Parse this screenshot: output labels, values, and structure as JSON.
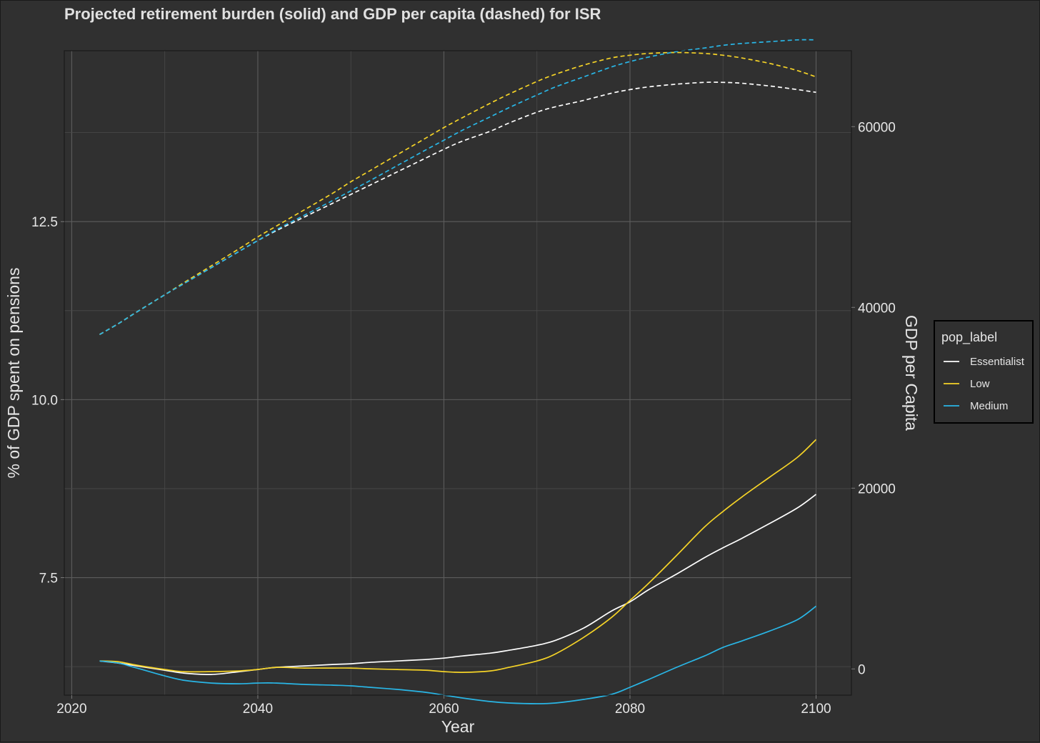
{
  "chart_data": {
    "type": "line",
    "title": "Projected retirement burden (solid) and GDP per capita (dashed) for ISR",
    "xlabel": "Year",
    "ylabel": "% of GDP spent on pensions",
    "y2label": "GDP per Capita",
    "xlim": [
      2019.2,
      2103.8
    ],
    "ylim": [
      5.85,
      14.9
    ],
    "y2lim": [
      -2900,
      68400
    ],
    "x_ticks": [
      "2020",
      "2040",
      "2060",
      "2080",
      "2100"
    ],
    "y_ticks": [
      "7.5",
      "10.0",
      "12.5"
    ],
    "y2_ticks": [
      "0",
      "20000",
      "40000",
      "60000"
    ],
    "legend": {
      "title": "pop_label",
      "position": "right",
      "entries": [
        {
          "label": "Essentialist",
          "color": "#ffffff"
        },
        {
          "label": "Low",
          "color": "#f5d327"
        },
        {
          "label": "Medium",
          "color": "#29b6e6"
        }
      ]
    },
    "x": [
      2023,
      2025,
      2027,
      2030,
      2032,
      2035,
      2038,
      2040,
      2042,
      2045,
      2048,
      2050,
      2052,
      2055,
      2058,
      2060,
      2062,
      2065,
      2067,
      2070,
      2072,
      2075,
      2078,
      2080,
      2082,
      2085,
      2088,
      2090,
      2092,
      2095,
      2098,
      2100
    ],
    "series": [
      {
        "name": "Essentialist",
        "axis": "pension",
        "color": "#ffffff",
        "values": [
          6.33,
          6.3,
          6.26,
          6.2,
          6.16,
          6.14,
          6.18,
          6.21,
          6.24,
          6.26,
          6.28,
          6.29,
          6.31,
          6.33,
          6.35,
          6.37,
          6.4,
          6.44,
          6.48,
          6.55,
          6.62,
          6.79,
          7.03,
          7.16,
          7.33,
          7.55,
          7.78,
          7.92,
          8.05,
          8.26,
          8.48,
          8.67
        ]
      },
      {
        "name": "Low",
        "axis": "pension",
        "color": "#f5d327",
        "values": [
          6.33,
          6.32,
          6.27,
          6.21,
          6.18,
          6.18,
          6.19,
          6.21,
          6.24,
          6.23,
          6.23,
          6.23,
          6.22,
          6.21,
          6.2,
          6.18,
          6.17,
          6.19,
          6.24,
          6.33,
          6.43,
          6.66,
          6.94,
          7.18,
          7.42,
          7.81,
          8.21,
          8.43,
          8.63,
          8.91,
          9.19,
          9.44
        ]
      },
      {
        "name": "Medium",
        "axis": "pension",
        "color": "#29b6e6",
        "values": [
          6.33,
          6.3,
          6.23,
          6.12,
          6.06,
          6.02,
          6.01,
          6.02,
          6.02,
          6.0,
          5.99,
          5.98,
          5.96,
          5.93,
          5.89,
          5.85,
          5.81,
          5.76,
          5.74,
          5.73,
          5.74,
          5.79,
          5.86,
          5.96,
          6.07,
          6.24,
          6.4,
          6.52,
          6.61,
          6.75,
          6.91,
          7.1
        ]
      },
      {
        "name": "Essentialist",
        "axis": "gdp",
        "color": "#ffffff",
        "values": [
          37000,
          38200,
          39500,
          41400,
          42600,
          44400,
          46200,
          47400,
          48500,
          50000,
          51500,
          52500,
          53500,
          55000,
          56500,
          57500,
          58400,
          59500,
          60400,
          61600,
          62200,
          62900,
          63700,
          64100,
          64400,
          64700,
          64900,
          64900,
          64800,
          64500,
          64100,
          63800
        ]
      },
      {
        "name": "Low",
        "axis": "gdp",
        "color": "#f5d327",
        "values": [
          37000,
          38200,
          39500,
          41400,
          42700,
          44600,
          46500,
          47800,
          49000,
          50800,
          52600,
          53900,
          55100,
          56900,
          58700,
          59900,
          61000,
          62600,
          63600,
          65000,
          65800,
          66800,
          67600,
          67900,
          68100,
          68200,
          68100,
          67900,
          67600,
          67000,
          66200,
          65500
        ]
      },
      {
        "name": "Medium",
        "axis": "gdp",
        "color": "#29b6e6",
        "values": [
          37000,
          38200,
          39500,
          41400,
          42600,
          44400,
          46200,
          47400,
          48600,
          50200,
          51800,
          52900,
          54000,
          55700,
          57400,
          58500,
          59600,
          61100,
          62100,
          63500,
          64400,
          65500,
          66600,
          67200,
          67700,
          68300,
          68700,
          69000,
          69200,
          69400,
          69600,
          69600
        ]
      }
    ]
  }
}
